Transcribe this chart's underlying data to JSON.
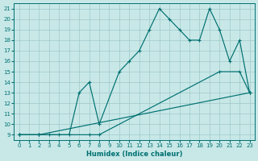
{
  "xlabel": "Humidex (Indice chaleur)",
  "bg_color": "#c8e8e8",
  "grid_color": "#a0c8c8",
  "line_color": "#007070",
  "xlim": [
    -0.5,
    23.5
  ],
  "ylim": [
    8.5,
    21.5
  ],
  "xticks": [
    0,
    1,
    2,
    3,
    4,
    5,
    6,
    7,
    8,
    9,
    10,
    11,
    12,
    13,
    14,
    15,
    16,
    17,
    18,
    19,
    20,
    21,
    22,
    23
  ],
  "yticks": [
    9,
    10,
    11,
    12,
    13,
    14,
    15,
    16,
    17,
    18,
    19,
    20,
    21
  ],
  "curve1_x": [
    0,
    2,
    23
  ],
  "curve1_y": [
    9,
    9,
    13
  ],
  "curve2_x": [
    0,
    2,
    7,
    8,
    20,
    22,
    23
  ],
  "curve2_y": [
    9,
    9,
    9,
    9,
    15,
    15,
    13
  ],
  "curve3_x": [
    0,
    2,
    3,
    4,
    5,
    6,
    7,
    8,
    10,
    11,
    12,
    13,
    14,
    15,
    16,
    17,
    18,
    19,
    20,
    21,
    22,
    23
  ],
  "curve3_y": [
    9,
    9,
    9,
    9,
    9,
    13,
    14,
    10,
    15,
    16,
    17,
    19,
    21,
    20,
    19,
    18,
    18,
    21,
    19,
    16,
    18,
    13
  ],
  "marker": "+",
  "markersize": 3.5,
  "linewidth": 0.85
}
